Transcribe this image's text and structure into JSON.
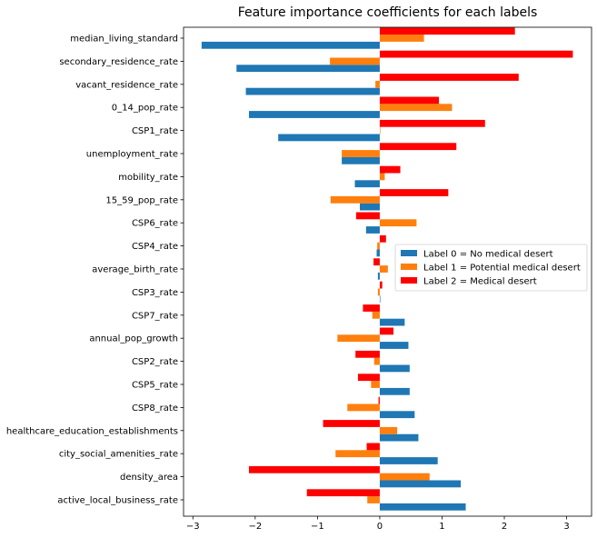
{
  "chart_data": {
    "type": "bar",
    "orientation": "horizontal",
    "title": "Feature importance coefficients for each labels",
    "xlabel": "",
    "ylabel": "",
    "xlim": [
      -3.15,
      3.4
    ],
    "xticks": [
      -3,
      -2,
      -1,
      0,
      1,
      2,
      3
    ],
    "grid": false,
    "legend_position": "center-right",
    "categories": [
      "active_local_business_rate",
      "density_area",
      "city_social_amenities_rate",
      "healthcare_education_establishments",
      "CSP8_rate",
      "CSP5_rate",
      "CSP2_rate",
      "annual_pop_growth",
      "CSP7_rate",
      "CSP3_rate",
      "average_birth_rate",
      "CSP4_rate",
      "CSP6_rate",
      "15_59_pop_rate",
      "mobility_rate",
      "unemployment_rate",
      "CSP1_rate",
      "0_14_pop_rate",
      "vacant_residence_rate",
      "secondary_residence_rate",
      "median_living_standard"
    ],
    "series": [
      {
        "name": "Label 0 = No medical desert",
        "color": "#1f77b4",
        "values": [
          1.38,
          1.3,
          0.93,
          0.62,
          0.56,
          0.48,
          0.48,
          0.46,
          0.4,
          0.0,
          -0.03,
          -0.05,
          -0.22,
          -0.32,
          -0.4,
          -0.61,
          -1.63,
          -2.1,
          -2.15,
          -2.3,
          -2.86
        ]
      },
      {
        "name": "Label 1 = Potential medical desert",
        "color": "#ff7f0e",
        "values": [
          -0.2,
          0.8,
          -0.71,
          0.28,
          -0.52,
          -0.14,
          -0.09,
          -0.68,
          -0.12,
          -0.03,
          0.13,
          -0.04,
          0.59,
          -0.79,
          0.08,
          -0.61,
          0.0,
          1.16,
          -0.07,
          -0.8,
          0.71
        ]
      },
      {
        "name": "Label 2 = Medical desert",
        "color": "#ff0000",
        "values": [
          -1.17,
          -2.1,
          -0.21,
          -0.91,
          -0.02,
          -0.35,
          -0.39,
          0.22,
          -0.27,
          0.04,
          -0.1,
          0.1,
          -0.38,
          1.1,
          0.33,
          1.23,
          1.69,
          0.95,
          2.23,
          3.1,
          2.17
        ]
      }
    ]
  }
}
